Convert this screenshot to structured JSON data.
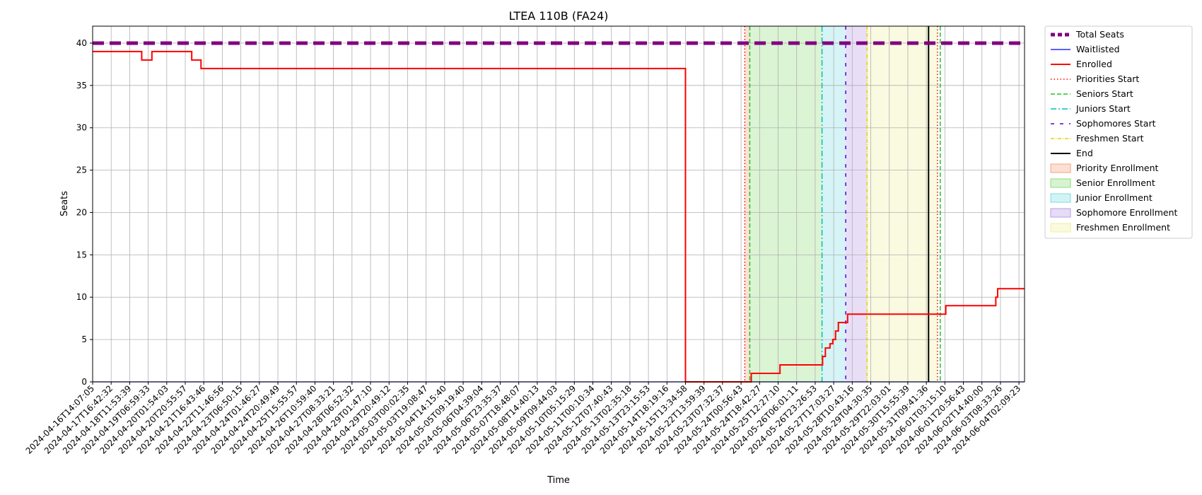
{
  "chart_data": {
    "type": "line",
    "title": "LTEA 110B (FA24)",
    "xlabel": "Time",
    "ylabel": "Seats",
    "ylim": [
      0,
      42
    ],
    "yticks": [
      0,
      5,
      10,
      15,
      20,
      25,
      30,
      35,
      40
    ],
    "grid": true,
    "legend_position": "outside-right",
    "x_tick_labels": [
      "2024-04-16T14:07:05",
      "2024-04-17T16:42:32",
      "2024-04-18T11:53:39",
      "2024-04-19T06:59:33",
      "2024-04-20T01:54:03",
      "2024-04-20T20:55:57",
      "2024-04-21T16:43:46",
      "2024-04-22T11:46:56",
      "2024-04-23T06:50:15",
      "2024-04-24T01:46:27",
      "2024-04-24T20:49:49",
      "2024-04-25T15:55:57",
      "2024-04-26T10:59:40",
      "2024-04-27T08:33:21",
      "2024-04-28T06:52:32",
      "2024-04-29T01:47:10",
      "2024-04-29T20:49:12",
      "2024-05-03T00:02:35",
      "2024-05-03T19:08:47",
      "2024-05-04T14:15:40",
      "2024-05-05T09:19:40",
      "2024-05-06T04:39:04",
      "2024-05-06T23:35:37",
      "2024-05-07T18:48:07",
      "2024-05-08T14:40:13",
      "2024-05-09T09:44:03",
      "2024-05-10T05:15:29",
      "2024-05-11T00:10:34",
      "2024-05-12T07:40:43",
      "2024-05-13T02:35:18",
      "2024-05-13T23:15:53",
      "2024-05-14T18:19:16",
      "2024-05-15T13:34:58",
      "2024-05-22T13:59:39",
      "2024-05-23T07:32:37",
      "2024-05-24T00:56:43",
      "2024-05-24T18:42:27",
      "2024-05-25T12:27:10",
      "2024-05-26T06:01:11",
      "2024-05-26T23:26:53",
      "2024-05-27T17:03:27",
      "2024-05-28T10:43:16",
      "2024-05-29T04:30:35",
      "2024-05-29T22:03:01",
      "2024-05-30T15:55:39",
      "2024-05-31T09:41:36",
      "2024-06-01T03:15:10",
      "2024-06-01T20:56:43",
      "2024-06-02T14:40:00",
      "2024-06-03T08:33:26",
      "2024-06-04T02:09:23"
    ],
    "x_range": [
      0,
      50.3
    ],
    "regions": [
      {
        "name": "Priority Enrollment",
        "x0": 35.2,
        "x1": 35.47,
        "color": "#f4a582"
      },
      {
        "name": "Senior Enrollment",
        "x0": 35.47,
        "x1": 39.37,
        "color": "#8fdc7a"
      },
      {
        "name": "Junior Enrollment",
        "x0": 39.37,
        "x1": 40.65,
        "color": "#7fdde0"
      },
      {
        "name": "Sophomore Enrollment",
        "x0": 40.65,
        "x1": 41.8,
        "color": "#b89be6"
      },
      {
        "name": "Freshmen Enrollment",
        "x0": 41.8,
        "x1": 45.6,
        "color": "#f0f0a0"
      }
    ],
    "vlines": [
      {
        "name": "Priorities Start",
        "x": 35.2,
        "color": "#ff0000",
        "dash": "1.5,3",
        "width": 1.5
      },
      {
        "name": "Seniors Start",
        "x": 35.47,
        "color": "#22c422",
        "dash": "6,3",
        "width": 1.5
      },
      {
        "name": "Juniors Start",
        "x": 39.37,
        "color": "#00bfbf",
        "dash": "8,3,2,3",
        "width": 1.5
      },
      {
        "name": "Sophomores Start",
        "x": 40.65,
        "color": "#5500dd",
        "dash": "5,8",
        "width": 1.5
      },
      {
        "name": "Freshmen Start",
        "x": 41.8,
        "color": "#e8d000",
        "dash": "5,2,1,2",
        "width": 1.5
      },
      {
        "name": "End",
        "x": 45.12,
        "color": "#000000",
        "dash": "",
        "width": 2
      },
      {
        "name": "Priorities Start",
        "x": 45.6,
        "color": "#ff0000",
        "dash": "1.5,3",
        "width": 1.5
      },
      {
        "name": "Seniors Start",
        "x": 45.75,
        "color": "#22c422",
        "dash": "6,3",
        "width": 1.5
      }
    ],
    "series": [
      {
        "name": "Total Seats",
        "color": "#800080",
        "style": "dashed-thick",
        "x": [
          0,
          50.3
        ],
        "y": [
          40,
          40
        ]
      },
      {
        "name": "Waitlisted",
        "color": "#0000ff",
        "style": "solid-thin",
        "x": [
          0,
          50.3
        ],
        "y": [
          0,
          0
        ]
      },
      {
        "name": "Enrolled",
        "color": "#ff0000",
        "style": "step",
        "x": [
          0,
          2.65,
          3.2,
          5.35,
          5.85,
          32.0,
          35.4,
          35.55,
          37.1,
          39.4,
          39.55,
          39.8,
          39.95,
          40.1,
          40.25,
          40.45,
          40.6,
          40.75,
          41.3,
          46.05,
          48.75,
          48.85,
          50.3
        ],
        "y": [
          39,
          38,
          39,
          38,
          37,
          0,
          0,
          1,
          2,
          3,
          4,
          4.5,
          5,
          6,
          7,
          7,
          7,
          8,
          8,
          9,
          10,
          11,
          11
        ]
      }
    ],
    "legend": [
      {
        "label": "Total Seats",
        "kind": "line",
        "color": "#800080",
        "dash": "6,4",
        "width": 5
      },
      {
        "label": "Waitlisted",
        "kind": "line",
        "color": "#0000ff",
        "dash": "",
        "width": 1.2
      },
      {
        "label": "Enrolled",
        "kind": "line",
        "color": "#ff0000",
        "dash": "",
        "width": 2
      },
      {
        "label": "Priorities Start",
        "kind": "line",
        "color": "#ff0000",
        "dash": "1.5,3",
        "width": 1.5
      },
      {
        "label": "Seniors Start",
        "kind": "line",
        "color": "#22c422",
        "dash": "6,3",
        "width": 1.5
      },
      {
        "label": "Juniors Start",
        "kind": "line",
        "color": "#00bfbf",
        "dash": "8,3,2,3",
        "width": 1.5
      },
      {
        "label": "Sophomores Start",
        "kind": "line",
        "color": "#5500dd",
        "dash": "5,8",
        "width": 1.5
      },
      {
        "label": "Freshmen Start",
        "kind": "line",
        "color": "#e8d000",
        "dash": "5,2,1,2",
        "width": 1.5
      },
      {
        "label": "End",
        "kind": "line",
        "color": "#000000",
        "dash": "",
        "width": 2
      },
      {
        "label": "Priority Enrollment",
        "kind": "patch",
        "color": "#f4a582"
      },
      {
        "label": "Senior Enrollment",
        "kind": "patch",
        "color": "#8fdc7a"
      },
      {
        "label": "Junior Enrollment",
        "kind": "patch",
        "color": "#7fdde0"
      },
      {
        "label": "Sophomore Enrollment",
        "kind": "patch",
        "color": "#b89be6"
      },
      {
        "label": "Freshmen Enrollment",
        "kind": "patch",
        "color": "#f0f0a0"
      }
    ]
  }
}
